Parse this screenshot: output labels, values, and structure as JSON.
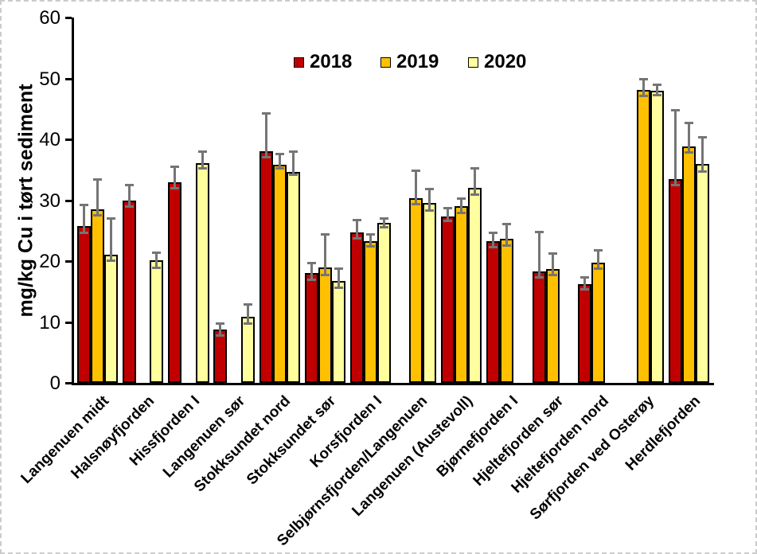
{
  "chart_data": {
    "type": "bar",
    "title": "",
    "ylabel": "mg/kg Cu i tørt sediment",
    "xlabel": "",
    "ylim": [
      0,
      60
    ],
    "yticks": [
      0,
      10,
      20,
      30,
      40,
      50,
      60
    ],
    "grid": false,
    "legend_position": "top-center",
    "legend": [
      "2018",
      "2019",
      "2020"
    ],
    "colors": {
      "2018": "#C00000",
      "2019": "#FFC000",
      "2020": "#FFFF9E",
      "error_bar": "#757575",
      "axis": "#000000"
    },
    "categories": [
      "Langenuen midt",
      "Halsnøyfjorden",
      "Hissfjorden I",
      "Langenuen sør",
      "Stokksundet nord",
      "Stokksundet sør",
      "Korsfjorden I",
      "Selbjørnsfjorden/Langenuen",
      "Langenuen (Austevoll)",
      "Bjørnefjorden I",
      "Hjeltefjorden sør",
      "Hjeltefjorden nord",
      "Sørfjorden ved Osterøy",
      "Herdlefjorden"
    ],
    "series": [
      {
        "name": "2018",
        "values": [
          25.8,
          30.0,
          33.0,
          8.8,
          38.0,
          18.1,
          24.7,
          null,
          27.3,
          23.3,
          18.3,
          16.2,
          null,
          33.4
        ],
        "err_hi": [
          29.3,
          32.6,
          35.6,
          9.8,
          44.3,
          19.7,
          26.8,
          null,
          28.7,
          24.7,
          24.8,
          17.4,
          null,
          44.9
        ],
        "err_lo": [
          24.6,
          28.9,
          31.9,
          7.7,
          37.0,
          16.9,
          23.6,
          null,
          26.5,
          22.2,
          17.3,
          15.3,
          null,
          32.4
        ]
      },
      {
        "name": "2019",
        "values": [
          28.5,
          null,
          null,
          null,
          35.8,
          19.0,
          23.3,
          30.3,
          29.0,
          23.7,
          18.7,
          19.7,
          48.1,
          38.8
        ],
        "err_hi": [
          33.5,
          null,
          null,
          null,
          37.6,
          24.4,
          24.5,
          34.9,
          30.3,
          26.1,
          21.3,
          21.8,
          50.0,
          42.8
        ],
        "err_lo": [
          27.4,
          null,
          null,
          null,
          35.2,
          17.7,
          22.3,
          29.3,
          27.8,
          22.5,
          17.7,
          18.7,
          47.1,
          37.8
        ]
      },
      {
        "name": "2020",
        "values": [
          21.0,
          20.1,
          36.1,
          10.8,
          34.7,
          16.7,
          26.3,
          29.5,
          32.0,
          null,
          null,
          null,
          48.0,
          35.9
        ],
        "err_hi": [
          27.0,
          21.4,
          38.1,
          13.0,
          38.0,
          18.8,
          27.1,
          31.9,
          35.3,
          null,
          null,
          null,
          49.0,
          40.4
        ],
        "err_lo": [
          20.0,
          18.8,
          35.1,
          9.7,
          34.1,
          15.5,
          25.5,
          28.3,
          30.9,
          null,
          null,
          null,
          47.2,
          34.7
        ]
      }
    ]
  }
}
